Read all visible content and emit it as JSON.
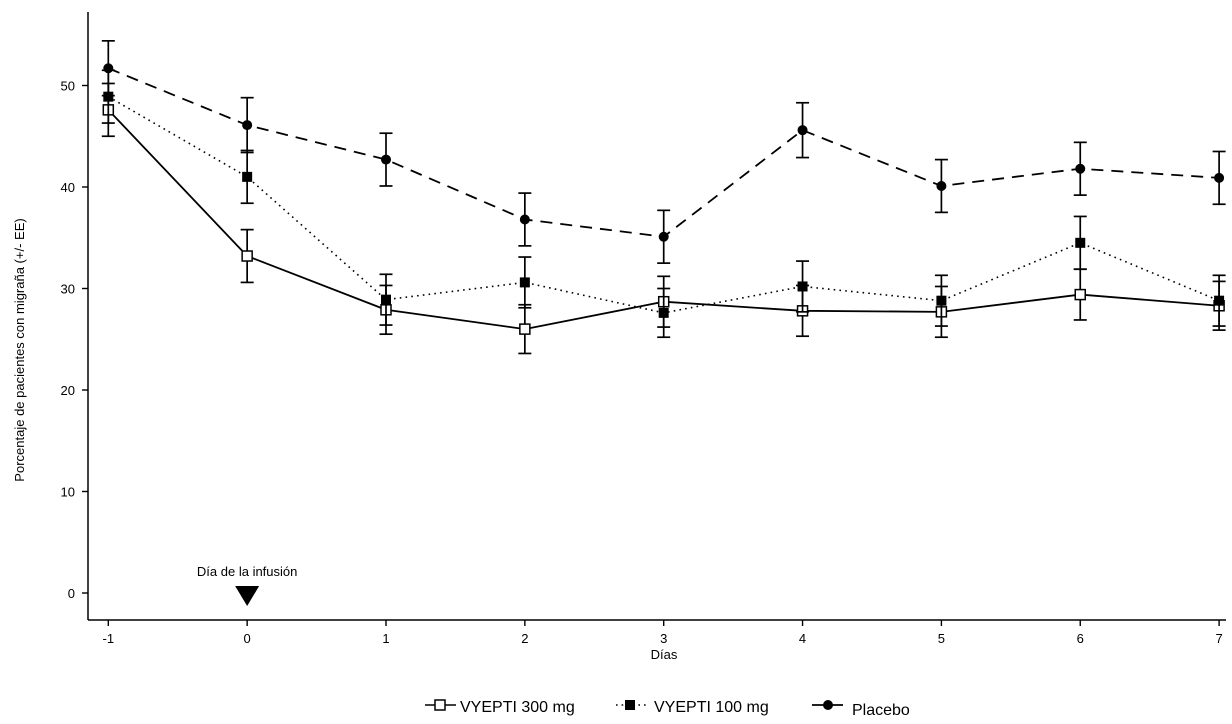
{
  "chart_data": {
    "type": "line",
    "title": "",
    "xlabel": "Días",
    "ylabel": "Porcentaje de pacientes con migraña (+/- EE)",
    "x": [
      -1,
      0,
      1,
      2,
      3,
      4,
      5,
      6,
      7
    ],
    "xlim": [
      -1.1,
      7.05
    ],
    "ylim": [
      -2.5,
      57.5
    ],
    "x_ticks": [
      -1,
      0,
      1,
      2,
      3,
      4,
      5,
      6,
      7
    ],
    "y_ticks": [
      0,
      10,
      20,
      30,
      40,
      50
    ],
    "grid": false,
    "legend_position": "bottom",
    "series": [
      {
        "name": "VYEPTI 300 mg",
        "values": [
          47.6,
          33.2,
          27.9,
          26.0,
          28.7,
          27.8,
          27.7,
          29.4,
          28.3
        ],
        "errors": [
          2.6,
          2.6,
          2.4,
          2.4,
          2.5,
          2.5,
          2.5,
          2.5,
          2.4
        ],
        "line_style": "solid",
        "marker": "open-square",
        "color": "#000000"
      },
      {
        "name": "VYEPTI 100 mg",
        "values": [
          48.9,
          41.0,
          28.9,
          30.6,
          27.6,
          30.2,
          28.8,
          34.5,
          28.8
        ],
        "errors": [
          2.6,
          2.6,
          2.5,
          2.5,
          2.4,
          2.5,
          2.5,
          2.6,
          2.5
        ],
        "line_style": "dotted",
        "marker": "filled-square",
        "color": "#000000"
      },
      {
        "name": "Placebo",
        "values": [
          51.7,
          46.1,
          42.7,
          36.8,
          35.1,
          45.6,
          40.1,
          41.8,
          40.9
        ],
        "errors": [
          2.7,
          2.7,
          2.6,
          2.6,
          2.6,
          2.7,
          2.6,
          2.6,
          2.6
        ],
        "line_style": "dashed",
        "marker": "filled-circle",
        "color": "#000000"
      }
    ],
    "annotations": [
      {
        "text": "Día de la infusión",
        "x": 0,
        "marker": "down-triangle"
      }
    ]
  }
}
